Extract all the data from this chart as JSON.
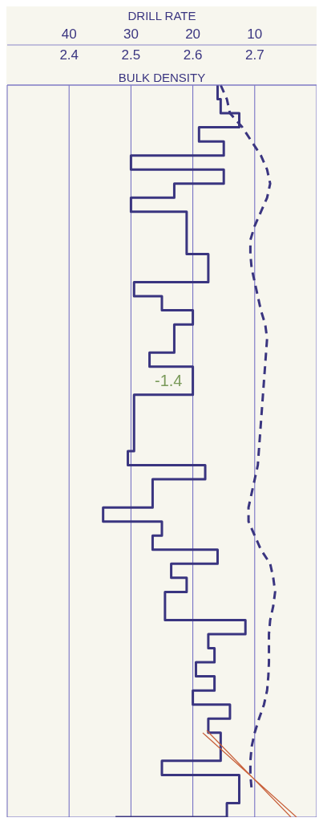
{
  "chart_data": {
    "type": "step",
    "orientation": "horizontal",
    "xlabel": "DRILL RATE",
    "x2label": "BULK DENSITY",
    "xlim": [
      50,
      0
    ],
    "xticks": [
      40,
      30,
      20,
      10
    ],
    "x2lim": [
      2.3,
      2.8
    ],
    "x2ticks": [
      2.4,
      2.5,
      2.6,
      2.7
    ],
    "tick_labels": "x",
    "grid": true,
    "marker": "none",
    "annotations": [
      "-1.4"
    ],
    "categories": [
      null,
      null,
      null,
      null,
      null,
      null,
      null,
      null,
      null,
      null,
      null,
      null,
      null,
      null,
      null,
      null,
      null,
      null,
      null,
      null,
      null,
      null,
      null,
      null,
      null,
      null,
      null,
      null,
      null,
      null,
      null,
      null,
      null,
      null,
      null,
      null,
      null,
      null,
      null,
      null,
      null,
      null,
      null,
      null,
      null,
      null,
      null,
      null,
      null,
      null,
      null,
      null,
      null
    ],
    "series": [
      {
        "type": "step",
        "color": "#3a3580",
        "line_style": "solid",
        "values": [
          16,
          15.5,
          12.5,
          19,
          15,
          30,
          15,
          23,
          30,
          21,
          21,
          21,
          17.5,
          17.5,
          29.5,
          25,
          20,
          23,
          23,
          27,
          20,
          20,
          29.5,
          29.5,
          29.5,
          29.5,
          30.5,
          18,
          26.5,
          26.5,
          34.5,
          25,
          26.5,
          16,
          23.5,
          21,
          24.5,
          24.5,
          11.5,
          17.5,
          16.5,
          19.5,
          16.5,
          20,
          14,
          17.5,
          15.5,
          15.5,
          25,
          12.5,
          12.5,
          14.5,
          32.5
        ]
      },
      {
        "type": "line",
        "axis": "x2",
        "color": "#3a3580",
        "line_style": "dashed",
        "values": [
          2.645,
          2.655,
          2.66,
          2.68,
          2.695,
          2.71,
          2.72,
          2.725,
          2.72,
          2.71,
          2.7,
          2.693,
          2.693,
          2.695,
          2.7,
          2.705,
          2.71,
          2.717,
          2.72,
          null,
          null,
          null,
          null,
          null,
          null,
          null,
          null,
          2.705,
          2.7,
          2.695,
          2.69,
          2.69,
          2.7,
          2.71,
          2.725,
          2.73,
          2.733,
          2.73,
          2.725,
          2.723,
          2.723,
          2.723,
          2.722,
          2.72,
          2.715,
          2.707,
          2.7,
          2.695,
          2.693,
          2.693,
          2.695,
          null,
          null
        ]
      }
    ]
  }
}
